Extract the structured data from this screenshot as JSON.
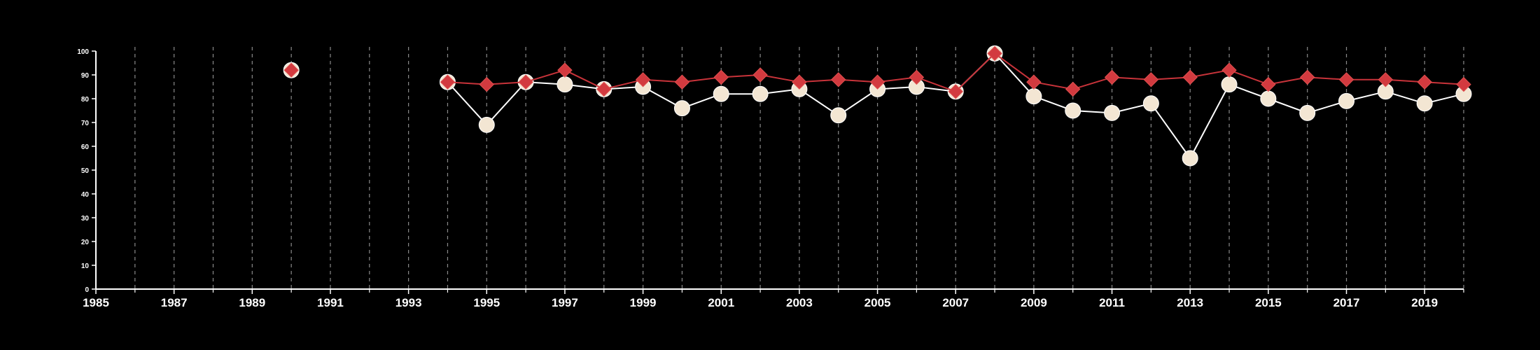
{
  "chart_data": {
    "type": "line",
    "title": "",
    "xlabel": "",
    "ylabel": "",
    "xlim": [
      1985,
      2020
    ],
    "ylim": [
      0,
      100
    ],
    "x_ticks": [
      1985,
      1987,
      1989,
      1991,
      1993,
      1995,
      1997,
      1999,
      2001,
      2003,
      2005,
      2007,
      2009,
      2011,
      2013,
      2015,
      2017,
      2019
    ],
    "y_ticks": [
      0,
      10,
      20,
      30,
      40,
      50,
      60,
      70,
      80,
      90,
      100
    ],
    "minor_x_ticks": [
      1986,
      1988,
      1990,
      1992,
      1994,
      1996,
      1998,
      2000,
      2002,
      2004,
      2006,
      2008,
      2010,
      2012,
      2014,
      2016,
      2018,
      2020
    ],
    "vertical_gridlines_every_year": true,
    "background_color": "#000000",
    "series": [
      {
        "marker": "circle",
        "line_color": "#ffffff",
        "marker_color": "#f3e6d3",
        "x": [
          1990,
          1994,
          1995,
          1996,
          1997,
          1998,
          1999,
          2000,
          2001,
          2002,
          2003,
          2004,
          2005,
          2006,
          2007,
          2008,
          2009,
          2010,
          2011,
          2012,
          2013,
          2014,
          2015,
          2016,
          2017,
          2018,
          2019,
          2020
        ],
        "y": [
          92,
          87,
          69,
          87,
          86,
          84,
          85,
          76,
          82,
          82,
          84,
          73,
          84,
          85,
          83,
          99,
          81,
          75,
          74,
          78,
          55,
          86,
          80,
          74,
          79,
          83,
          78,
          82
        ]
      },
      {
        "marker": "diamond",
        "line_color": "#c8333a",
        "marker_color": "#d23a3f",
        "x": [
          1990,
          1994,
          1995,
          1996,
          1997,
          1998,
          1999,
          2000,
          2001,
          2002,
          2003,
          2004,
          2005,
          2006,
          2007,
          2008,
          2009,
          2010,
          2011,
          2012,
          2013,
          2014,
          2015,
          2016,
          2017,
          2018,
          2019,
          2020
        ],
        "y": [
          92,
          87,
          86,
          87,
          92,
          84,
          88,
          87,
          89,
          90,
          87,
          88,
          87,
          89,
          83,
          99,
          87,
          84,
          89,
          88,
          89,
          92,
          86,
          89,
          88,
          88,
          87,
          86
        ]
      }
    ]
  }
}
